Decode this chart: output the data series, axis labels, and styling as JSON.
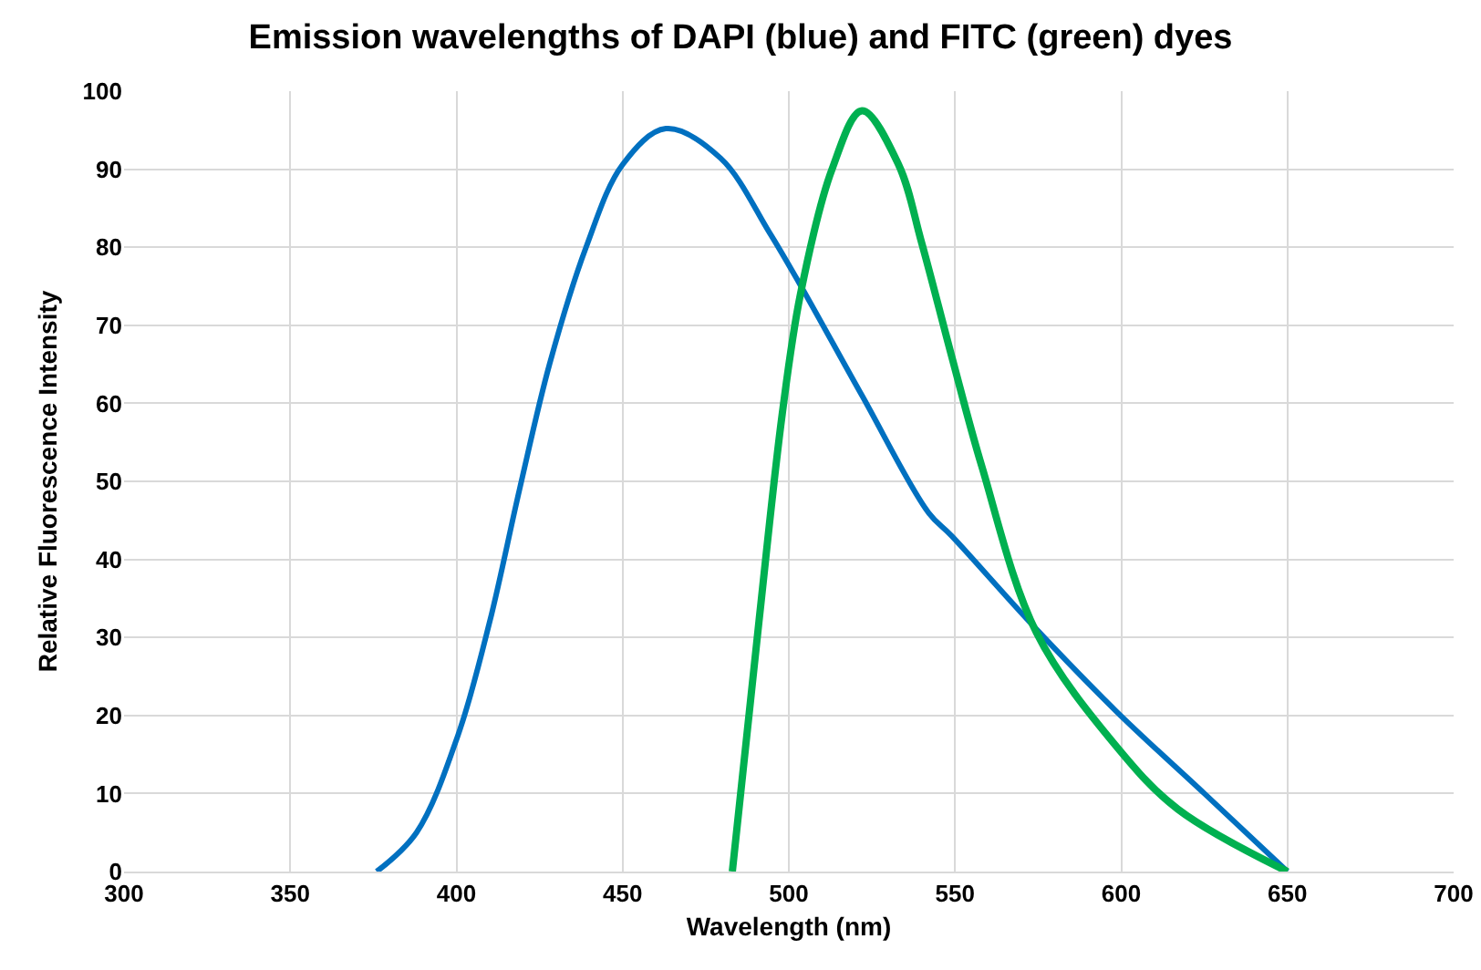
{
  "chart_data": {
    "type": "line",
    "title": "Emission wavelengths of DAPI (blue) and FITC (green) dyes",
    "xlabel": "Wavelength (nm)",
    "ylabel": "Relative Fluorescence Intensity",
    "xlim": [
      300,
      700
    ],
    "xticks": [
      300,
      350,
      400,
      450,
      500,
      550,
      600,
      650,
      700
    ],
    "ylim": [
      0,
      100
    ],
    "yticks": [
      0,
      10,
      20,
      30,
      40,
      50,
      60,
      70,
      80,
      90,
      100
    ],
    "grid": true,
    "marker": "none",
    "line_style": "solid",
    "series": [
      {
        "color": "#0070c0",
        "x": [
          376,
          388,
          400.5,
          410,
          419,
          428,
          439,
          450,
          463,
          479.5,
          494,
          503,
          522,
          542,
          549,
          573.5,
          598.6,
          625,
          650
        ],
        "values": [
          0,
          5,
          17.5,
          32,
          49,
          65,
          80,
          90.6,
          95.2,
          91.4,
          82,
          75.5,
          61,
          46,
          43,
          31.5,
          20.5,
          10,
          0
        ]
      },
      {
        "color": "#00b050",
        "x": [
          483,
          491,
          498,
          503.5,
          513,
          522,
          533,
          540,
          549,
          558,
          574.5,
          598.6,
          617,
          650
        ],
        "values": [
          0,
          32,
          58.6,
          74,
          90,
          97.5,
          90.6,
          80.5,
          66,
          52,
          30.6,
          16,
          8,
          0
        ]
      }
    ]
  }
}
